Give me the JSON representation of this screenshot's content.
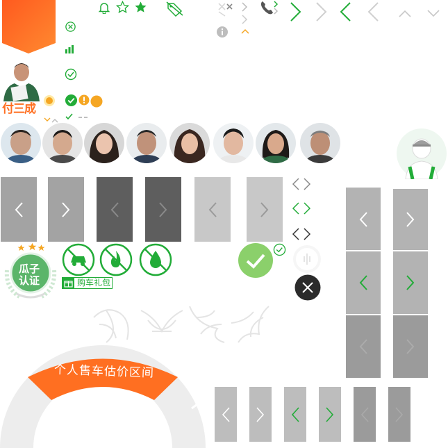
{
  "sprite": {
    "agent_name": "付三成",
    "badge_line1": "瓜子",
    "badge_line2": "认证",
    "gift_label": "购车礼包",
    "arc_title": "个人售车估价区间"
  },
  "colors": {
    "brand_orange": "#FF6F21",
    "brand_green": "#22AC38",
    "warning_yellow": "#F5A623",
    "panel_light": "#BDBDBD",
    "panel_mid": "#A3A3A3",
    "panel_dark": "#5E5E5E"
  },
  "icons": {
    "row_top": [
      "bell-icon",
      "star-outline-icon",
      "star-filled-icon",
      "tag-icon",
      "close-icon",
      "phone-icon",
      "chevron-right-icon",
      "chevron-left-icon",
      "chevron-up-icon",
      "chevron-down-icon"
    ],
    "column_left": [
      "close-circle-icon",
      "bar-chart-icon",
      "check-circle-icon",
      "check-filled-icon",
      "warning-icon",
      "check-icon"
    ],
    "no_symbols": [
      "no-car-icon",
      "no-fire-icon",
      "no-water-icon"
    ]
  }
}
